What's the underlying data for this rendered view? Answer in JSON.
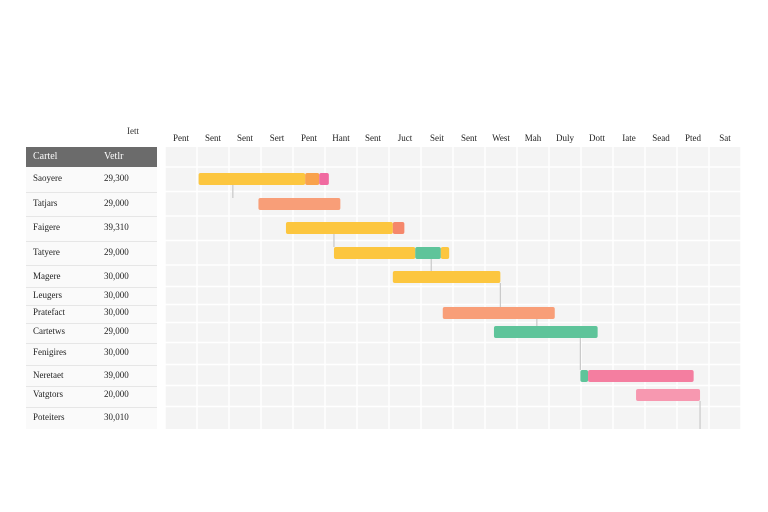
{
  "chart_data": {
    "type": "gantt",
    "corner_label": "Iett",
    "left_columns": [
      "Cartel",
      "Vetlr"
    ],
    "months": [
      "Pent",
      "Sent",
      "Sent",
      "Sert",
      "Pent",
      "Hant",
      "Sent",
      "Juct",
      "Seit",
      "Sent",
      "West",
      "Mah",
      "Duly",
      "Dott",
      "Iate",
      "Sead",
      "Pted",
      "Sat"
    ],
    "rows": [
      {
        "label": "Saoyere",
        "value": "29,300",
        "segments": [
          {
            "start": 1.05,
            "end": 4.38,
            "color": "#fcc63f"
          },
          {
            "start": 4.38,
            "end": 4.82,
            "color": "#f9a24c"
          },
          {
            "start": 4.82,
            "end": 5.12,
            "color": "#f06aa0"
          }
        ]
      },
      {
        "label": "Tatjars",
        "value": "29,000",
        "segments": [
          {
            "start": 2.92,
            "end": 5.48,
            "color": "#f89e78"
          }
        ]
      },
      {
        "label": "Faigere",
        "value": "39,310",
        "segments": [
          {
            "start": 3.78,
            "end": 7.12,
            "color": "#fcc63f"
          },
          {
            "start": 7.12,
            "end": 7.48,
            "color": "#f5876b"
          }
        ]
      },
      {
        "label": "Tatyere",
        "value": "29,000",
        "segments": [
          {
            "start": 5.28,
            "end": 7.82,
            "color": "#fcc63f"
          },
          {
            "start": 7.82,
            "end": 8.62,
            "color": "#5ec49a"
          },
          {
            "start": 8.62,
            "end": 8.88,
            "color": "#fcc63f"
          }
        ]
      },
      {
        "label": "Magere",
        "value": "30,000",
        "segments": [
          {
            "start": 7.12,
            "end": 10.48,
            "color": "#fcc63f"
          }
        ]
      },
      {
        "label": "Leugers",
        "value": "30,000",
        "segments": []
      },
      {
        "label": "Pratefact",
        "value": "30,000",
        "segments": [
          {
            "start": 8.68,
            "end": 12.18,
            "color": "#f89e78"
          }
        ]
      },
      {
        "label": "Cartetws",
        "value": "29,000",
        "segments": [
          {
            "start": 10.28,
            "end": 13.52,
            "color": "#5ec49a"
          }
        ]
      },
      {
        "label": "Fenigires",
        "value": "30,000",
        "segments": []
      },
      {
        "label": "Neretaet",
        "value": "39,000",
        "segments": [
          {
            "start": 12.98,
            "end": 13.22,
            "color": "#5ec49a"
          },
          {
            "start": 13.22,
            "end": 16.52,
            "color": "#f47ea0"
          }
        ]
      },
      {
        "label": "Vatgtors",
        "value": "20,000",
        "segments": [
          {
            "start": 14.72,
            "end": 16.72,
            "color": "#f798b0"
          }
        ]
      },
      {
        "label": "Poteiters",
        "value": "30,010",
        "segments": []
      }
    ],
    "dependencies": [
      {
        "from_row": 0,
        "to_row": 1,
        "x": 2.12
      },
      {
        "from_row": 2,
        "to_row": 3,
        "x": 5.28
      },
      {
        "from_row": 3,
        "to_row": 4,
        "x": 8.32
      },
      {
        "from_row": 4,
        "to_row": 6,
        "x": 10.48
      },
      {
        "from_row": 6,
        "to_row": 7,
        "x": 11.62
      },
      {
        "from_row": 7,
        "to_row": 9,
        "x": 12.98
      },
      {
        "from_row": 10,
        "to_row": 11,
        "x": 16.72
      }
    ],
    "grid": true
  }
}
